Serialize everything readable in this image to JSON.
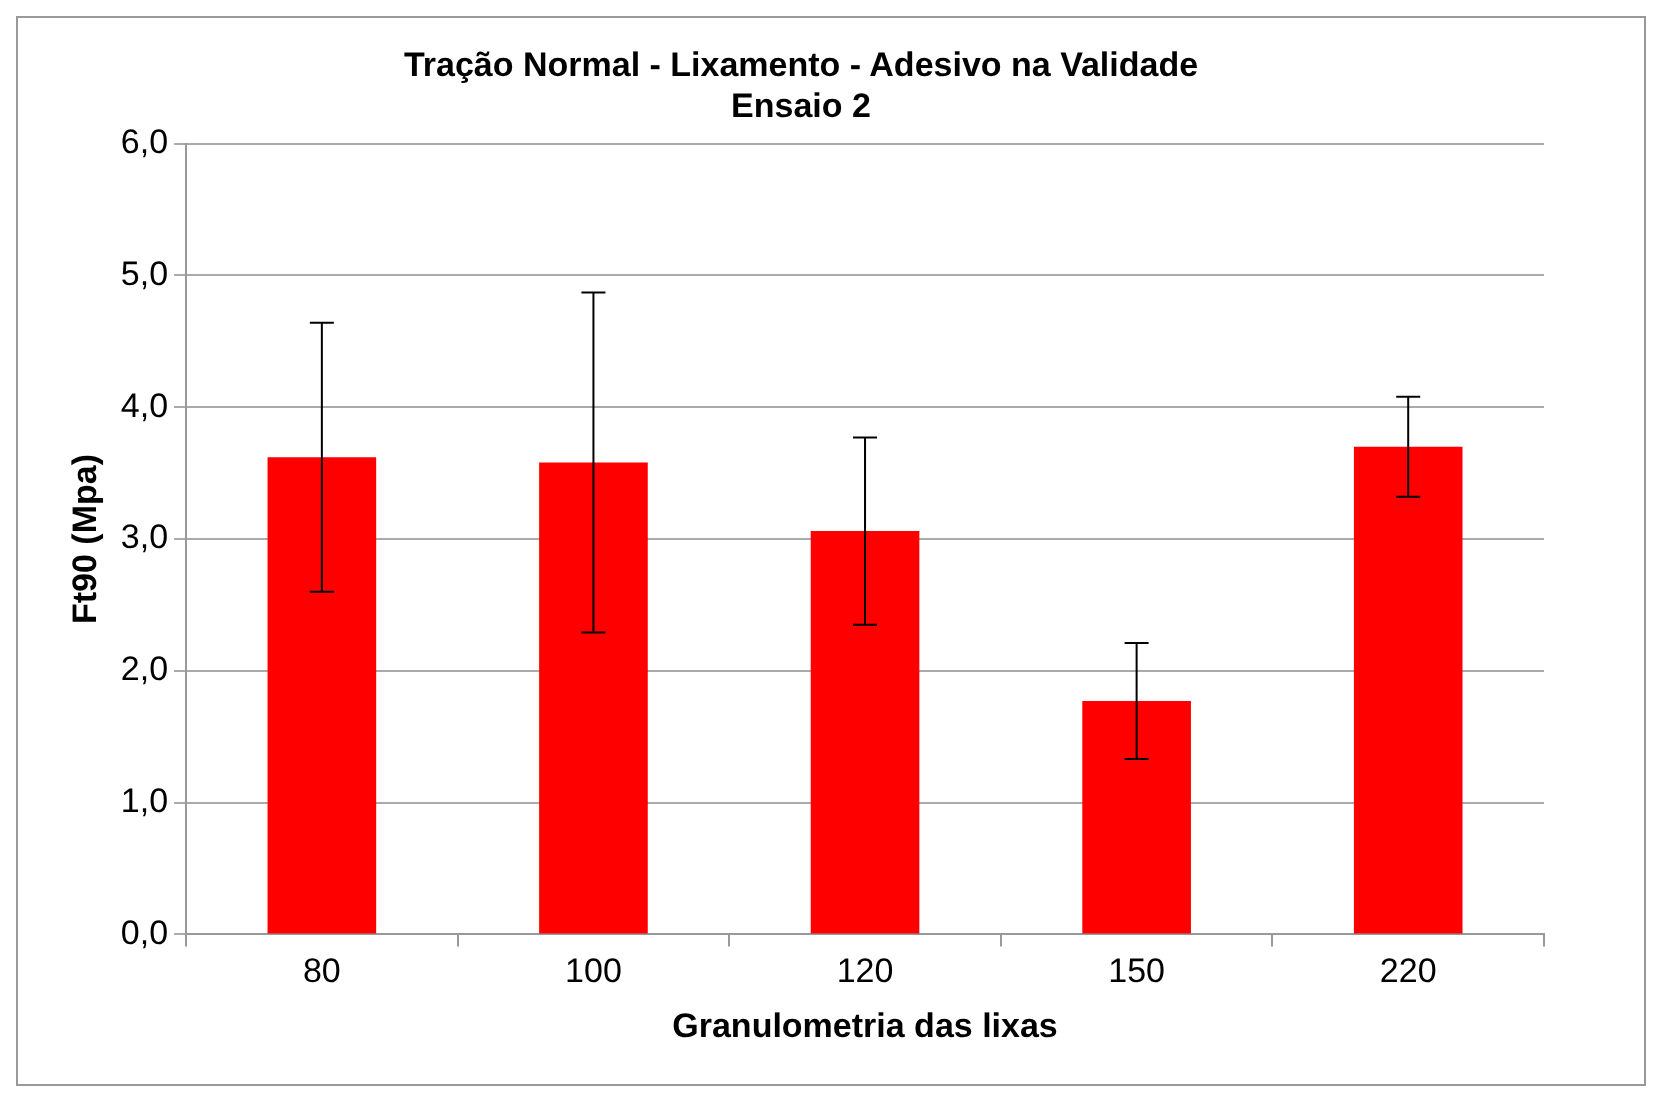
{
  "chart_data": {
    "type": "bar",
    "title": [
      "Tração Normal - Lixamento - Adesivo na Validade",
      "Ensaio 2"
    ],
    "xlabel": "Granulometria das lixas",
    "ylabel": "Ft90 (Mpa)",
    "categories": [
      "80",
      "100",
      "120",
      "150",
      "220"
    ],
    "values": [
      3.62,
      3.58,
      3.06,
      1.77,
      3.7
    ],
    "errors": [
      1.02,
      1.29,
      0.71,
      0.44,
      0.38
    ],
    "color": "#ff0000",
    "ylim": [
      0,
      6
    ],
    "yticks": [
      {
        "value": 0,
        "label": "0,0"
      },
      {
        "value": 1,
        "label": "1,0"
      },
      {
        "value": 2,
        "label": "2,0"
      },
      {
        "value": 3,
        "label": "3,0"
      },
      {
        "value": 4,
        "label": "4,0"
      },
      {
        "value": 5,
        "label": "5,0"
      },
      {
        "value": 6,
        "label": "6,0"
      }
    ],
    "grid": "y",
    "legend": false
  }
}
